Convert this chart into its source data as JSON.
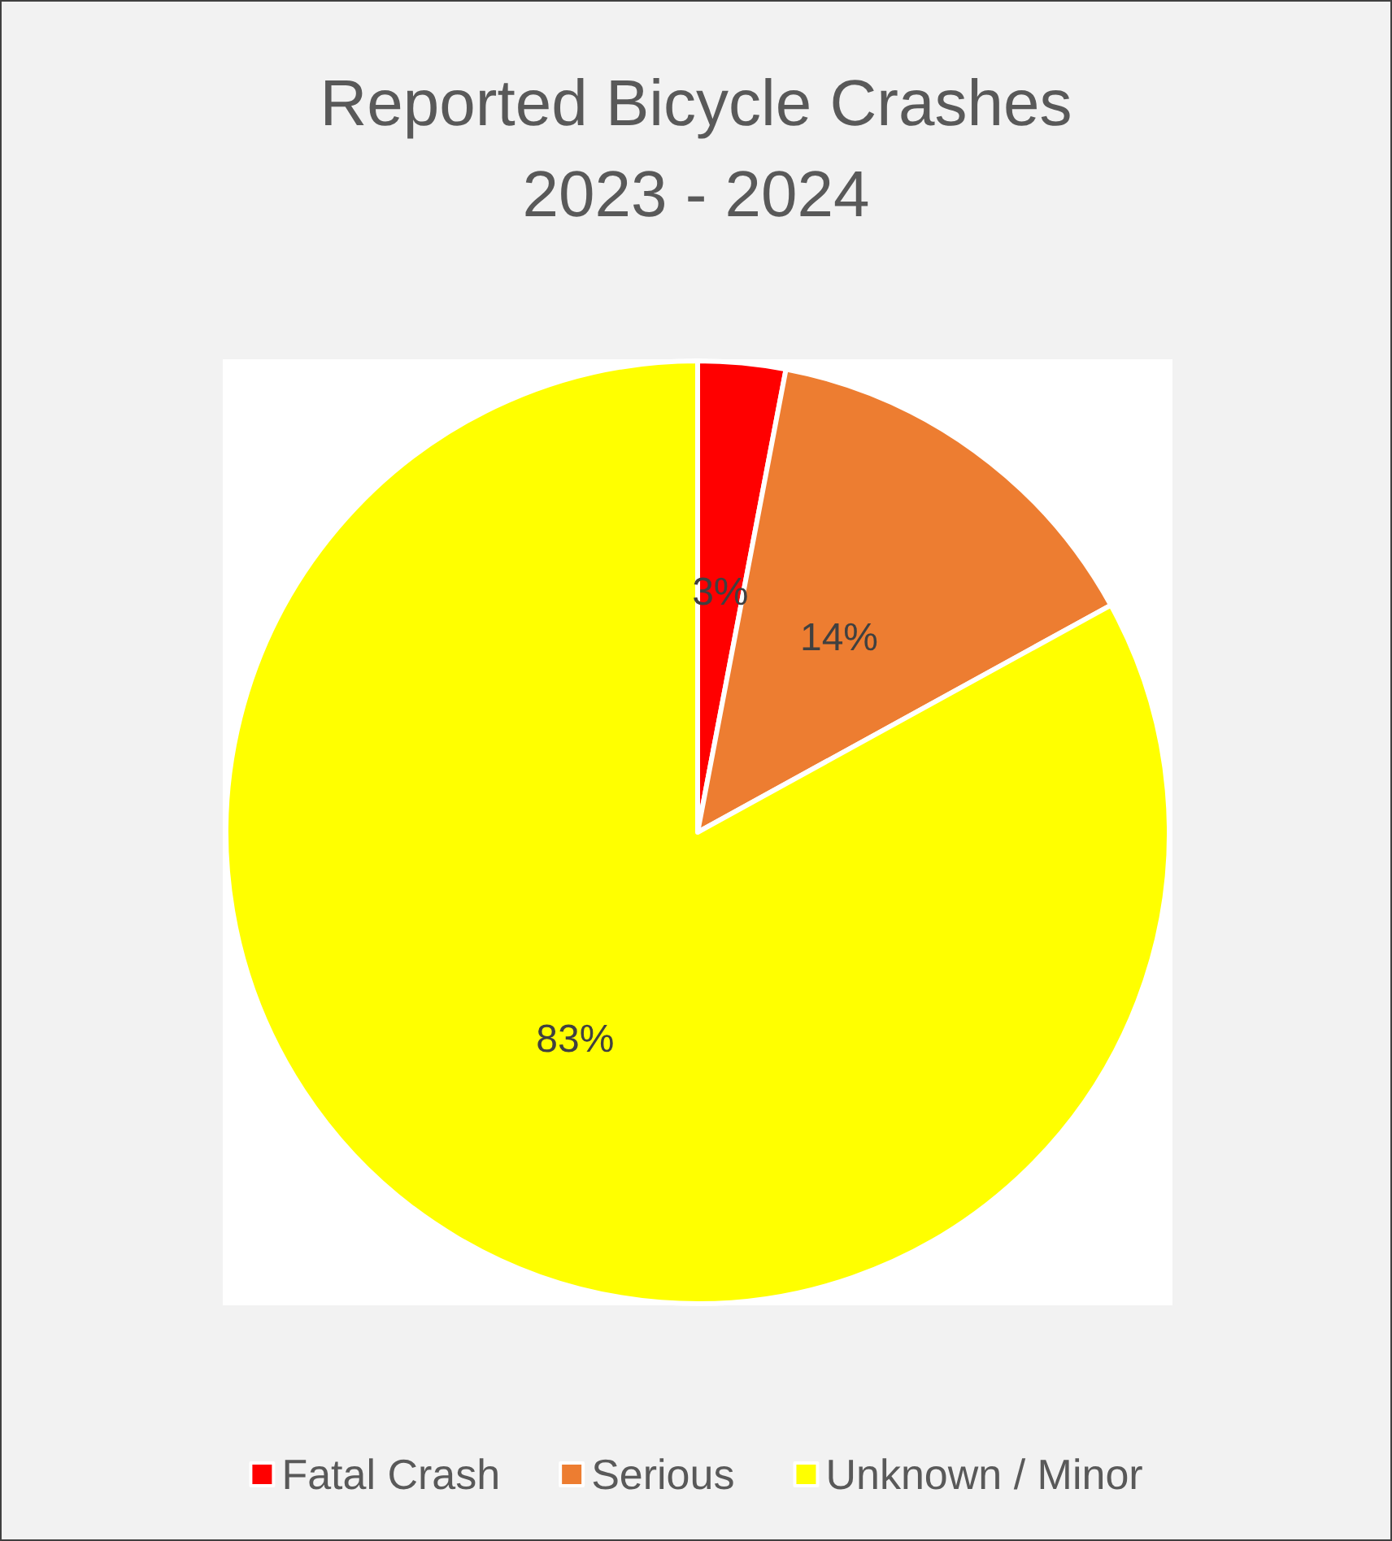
{
  "chart_data": {
    "type": "pie",
    "title": "Reported Bicycle Crashes\n2023 - 2024",
    "categories": [
      "Fatal Crash",
      "Serious",
      "Unknown / Minor"
    ],
    "values": [
      3,
      14,
      83
    ],
    "colors": [
      "#ff0000",
      "#ed7d31",
      "#ffff00"
    ],
    "value_labels": [
      "3%",
      "14%",
      "83%"
    ],
    "legend": "bottom"
  }
}
